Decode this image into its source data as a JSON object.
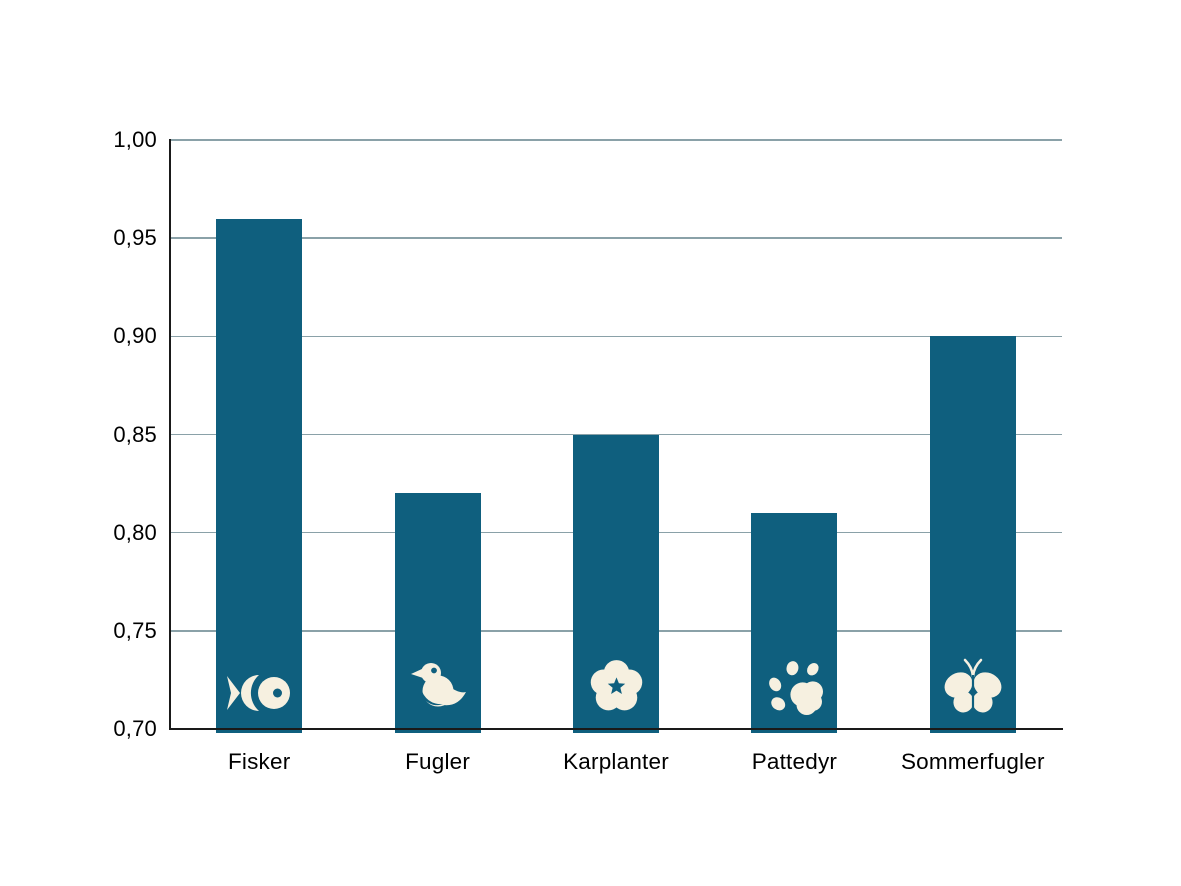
{
  "chart_data": {
    "type": "bar",
    "categories": [
      "Fisker",
      "Fugler",
      "Karplanter",
      "Pattedyr",
      "Sommerfugler"
    ],
    "values": [
      0.96,
      0.82,
      0.85,
      0.81,
      0.9
    ],
    "icons": [
      "fish-icon",
      "bird-icon",
      "flower-icon",
      "paw-icon",
      "butterfly-icon"
    ],
    "ylim": [
      0.7,
      1.0
    ],
    "ytick_step": 0.05,
    "ytick_labels": [
      "0,70",
      "0,75",
      "0,80",
      "0,85",
      "0,90",
      "0,95",
      "1,00"
    ],
    "decimal_separator": ",",
    "grid": true,
    "legend": "none",
    "colors": {
      "bar": "#0f5f7e",
      "icon": "#f6f0e0",
      "gridline": "#8aa1a8",
      "axis": "#1a1a1a",
      "text": "#000000",
      "background": "#ffffff"
    }
  }
}
